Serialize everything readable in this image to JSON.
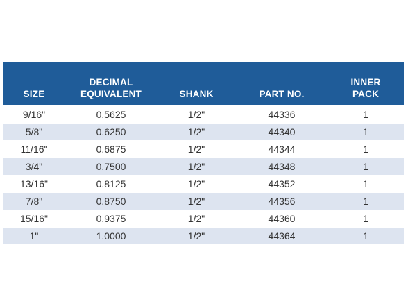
{
  "table": {
    "headers": {
      "size": [
        "SIZE"
      ],
      "decimal": [
        "DECIMAL",
        "EQUIVALENT"
      ],
      "shank": [
        "SHANK"
      ],
      "part": [
        "PART NO."
      ],
      "inner": [
        "INNER",
        "PACK"
      ]
    },
    "rows": [
      {
        "size": "9/16\"",
        "decimal": "0.5625",
        "shank": "1/2\"",
        "part": "44336",
        "inner": "1"
      },
      {
        "size": "5/8\"",
        "decimal": "0.6250",
        "shank": "1/2\"",
        "part": "44340",
        "inner": "1"
      },
      {
        "size": "11/16\"",
        "decimal": "0.6875",
        "shank": "1/2\"",
        "part": "44344",
        "inner": "1"
      },
      {
        "size": "3/4\"",
        "decimal": "0.7500",
        "shank": "1/2\"",
        "part": "44348",
        "inner": "1"
      },
      {
        "size": "13/16\"",
        "decimal": "0.8125",
        "shank": "1/2\"",
        "part": "44352",
        "inner": "1"
      },
      {
        "size": "7/8\"",
        "decimal": "0.8750",
        "shank": "1/2\"",
        "part": "44356",
        "inner": "1"
      },
      {
        "size": "15/16\"",
        "decimal": "0.9375",
        "shank": "1/2\"",
        "part": "44360",
        "inner": "1"
      },
      {
        "size": "1\"",
        "decimal": "1.0000",
        "shank": "1/2\"",
        "part": "44364",
        "inner": "1"
      }
    ]
  },
  "colors": {
    "header_background": "#1f5c99",
    "header_text": "#ffffff",
    "row_alt_background": "#dde4f0",
    "body_text": "#333333"
  }
}
